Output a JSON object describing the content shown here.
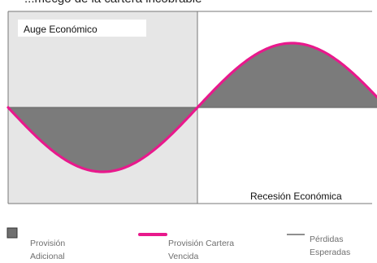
{
  "header_fragment": "...mecgo de la cartera incobrable",
  "regions": {
    "left_label": "Auge Económico",
    "right_label": "Recesión Económica"
  },
  "legend": [
    {
      "label": "Provisión\nAdicional",
      "icon": "grey-square-swatch"
    },
    {
      "label": "Provisión Cartera\nVencida",
      "icon": "magenta-line-swatch"
    },
    {
      "label": "Pérdidas\nEsperadas",
      "icon": "grey-line-swatch"
    }
  ],
  "colors": {
    "boom_panel": "#e6e6e6",
    "fill": "#7b7b7b",
    "provision_line": "#e8198c",
    "expected_loss_line": "#8f8f8f",
    "panel_border": "#777777"
  }
}
